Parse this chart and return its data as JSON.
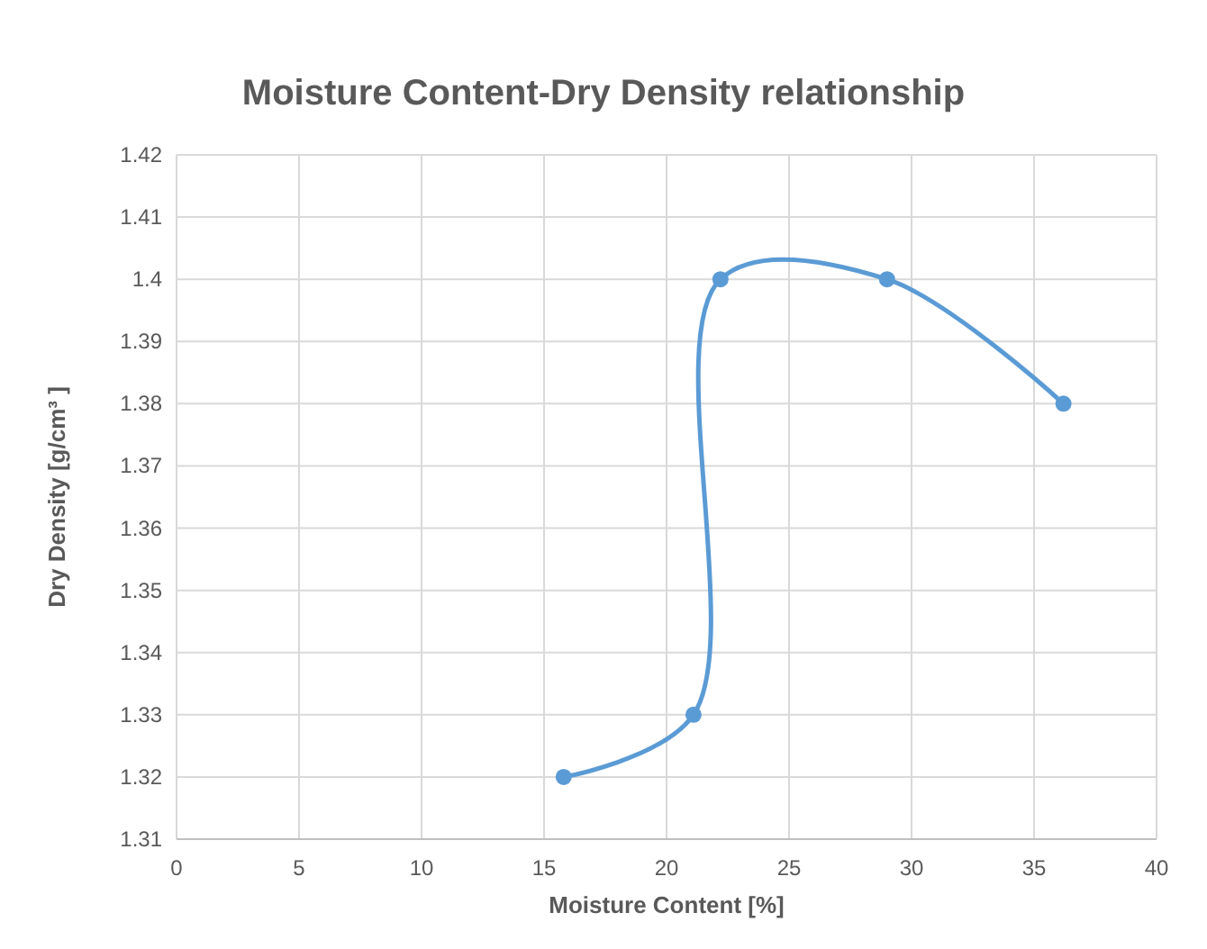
{
  "chart_data": {
    "type": "line",
    "title": "Moisture Content-Dry Density relationship",
    "xlabel": "Moisture Content [%]",
    "ylabel": "Dry Density [g/cm³ ]",
    "x": [
      15.8,
      21.1,
      22.2,
      29.0,
      36.2
    ],
    "series": [
      {
        "color": "#5b9bd5",
        "values": [
          1.32,
          1.33,
          1.4,
          1.4,
          1.38
        ]
      }
    ],
    "xlim": [
      0,
      40
    ],
    "xticks": [
      0,
      5,
      10,
      15,
      20,
      25,
      30,
      35,
      40
    ],
    "ylim": [
      1.31,
      1.42
    ],
    "yticks": [
      1.31,
      1.32,
      1.33,
      1.34,
      1.35,
      1.36,
      1.37,
      1.38,
      1.39,
      1.4,
      1.41,
      1.42
    ],
    "grid": true,
    "marker": "circle",
    "line_style": "solid"
  }
}
